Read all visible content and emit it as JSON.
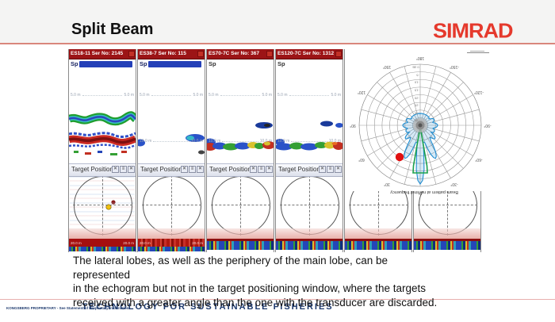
{
  "header": {
    "title": "Split Beam",
    "logo": "SIMRAD"
  },
  "caption": {
    "text": "The lateral lobes, as well as the periphery of the main lobe, can be represented\nin the echogram but not in the target positioning window, where the targets\nreceived with a greater angle than the one with the transducer are discarded."
  },
  "footer": {
    "left": "KONGSBERG PROPRIETARY - See Statement of Proprietary Information",
    "center": "TECHNOLOGY FOR SUSTAINABLE FISHERIES"
  },
  "target_window": {
    "title": "Target Position",
    "icons": [
      {
        "name": "adjust-icon",
        "glyph": "✕"
      },
      {
        "name": "menu-icon",
        "glyph": "≡"
      },
      {
        "name": "close-icon",
        "glyph": "✕"
      }
    ]
  },
  "panels": [
    {
      "header": "ES18-11 Ser No: 2145",
      "mode": "Sp",
      "depth_5": "5.0 m",
      "depth_20": "20.0 m"
    },
    {
      "header": "ES38-7 Ser No: 115",
      "mode": "Sp",
      "depth_5": "5.0 m",
      "depth_10": "10.0 m",
      "depth_20": "20.0 m"
    },
    {
      "header": "ES70-7C Ser No: 367",
      "mode": "Sp",
      "depth_5": "5.0 m",
      "depth_10": "10.0 m"
    },
    {
      "header": "ES120-7C Ser No: 1312",
      "mode": "Sp",
      "depth_5": "5.0 m",
      "depth_10": "10.0 m"
    }
  ],
  "beam_plot": {
    "caption": "Beam pattern at nominal frequency",
    "angle_labels": [
      {
        "label": "0°",
        "angle": 0
      },
      {
        "label": "30°",
        "angle": 30
      },
      {
        "label": "60°",
        "angle": 60
      },
      {
        "label": "90°",
        "angle": 90
      },
      {
        "label": "120°",
        "angle": 120
      },
      {
        "label": "150°",
        "angle": 150
      },
      {
        "label": "180°",
        "angle": 180
      },
      {
        "label": "-150°",
        "angle": -150
      },
      {
        "label": "-120°",
        "angle": -120
      },
      {
        "label": "-90°",
        "angle": -90
      },
      {
        "label": "-60°",
        "angle": -60
      },
      {
        "label": "-30°",
        "angle": -30
      }
    ],
    "db_labels": [
      "0 dB",
      "-5",
      "-10",
      "-15",
      "-20",
      "-25",
      "-30",
      "-35"
    ]
  },
  "colors": {
    "accent_red": "#e5392c",
    "navy": "#1e3a6e",
    "salmon_line": "#d9867c",
    "panel_header_red": "#9c1416",
    "beam_blue": "#1e8cd0",
    "beam_green": "#1ca04a",
    "target_dot_red": "#e01010"
  }
}
